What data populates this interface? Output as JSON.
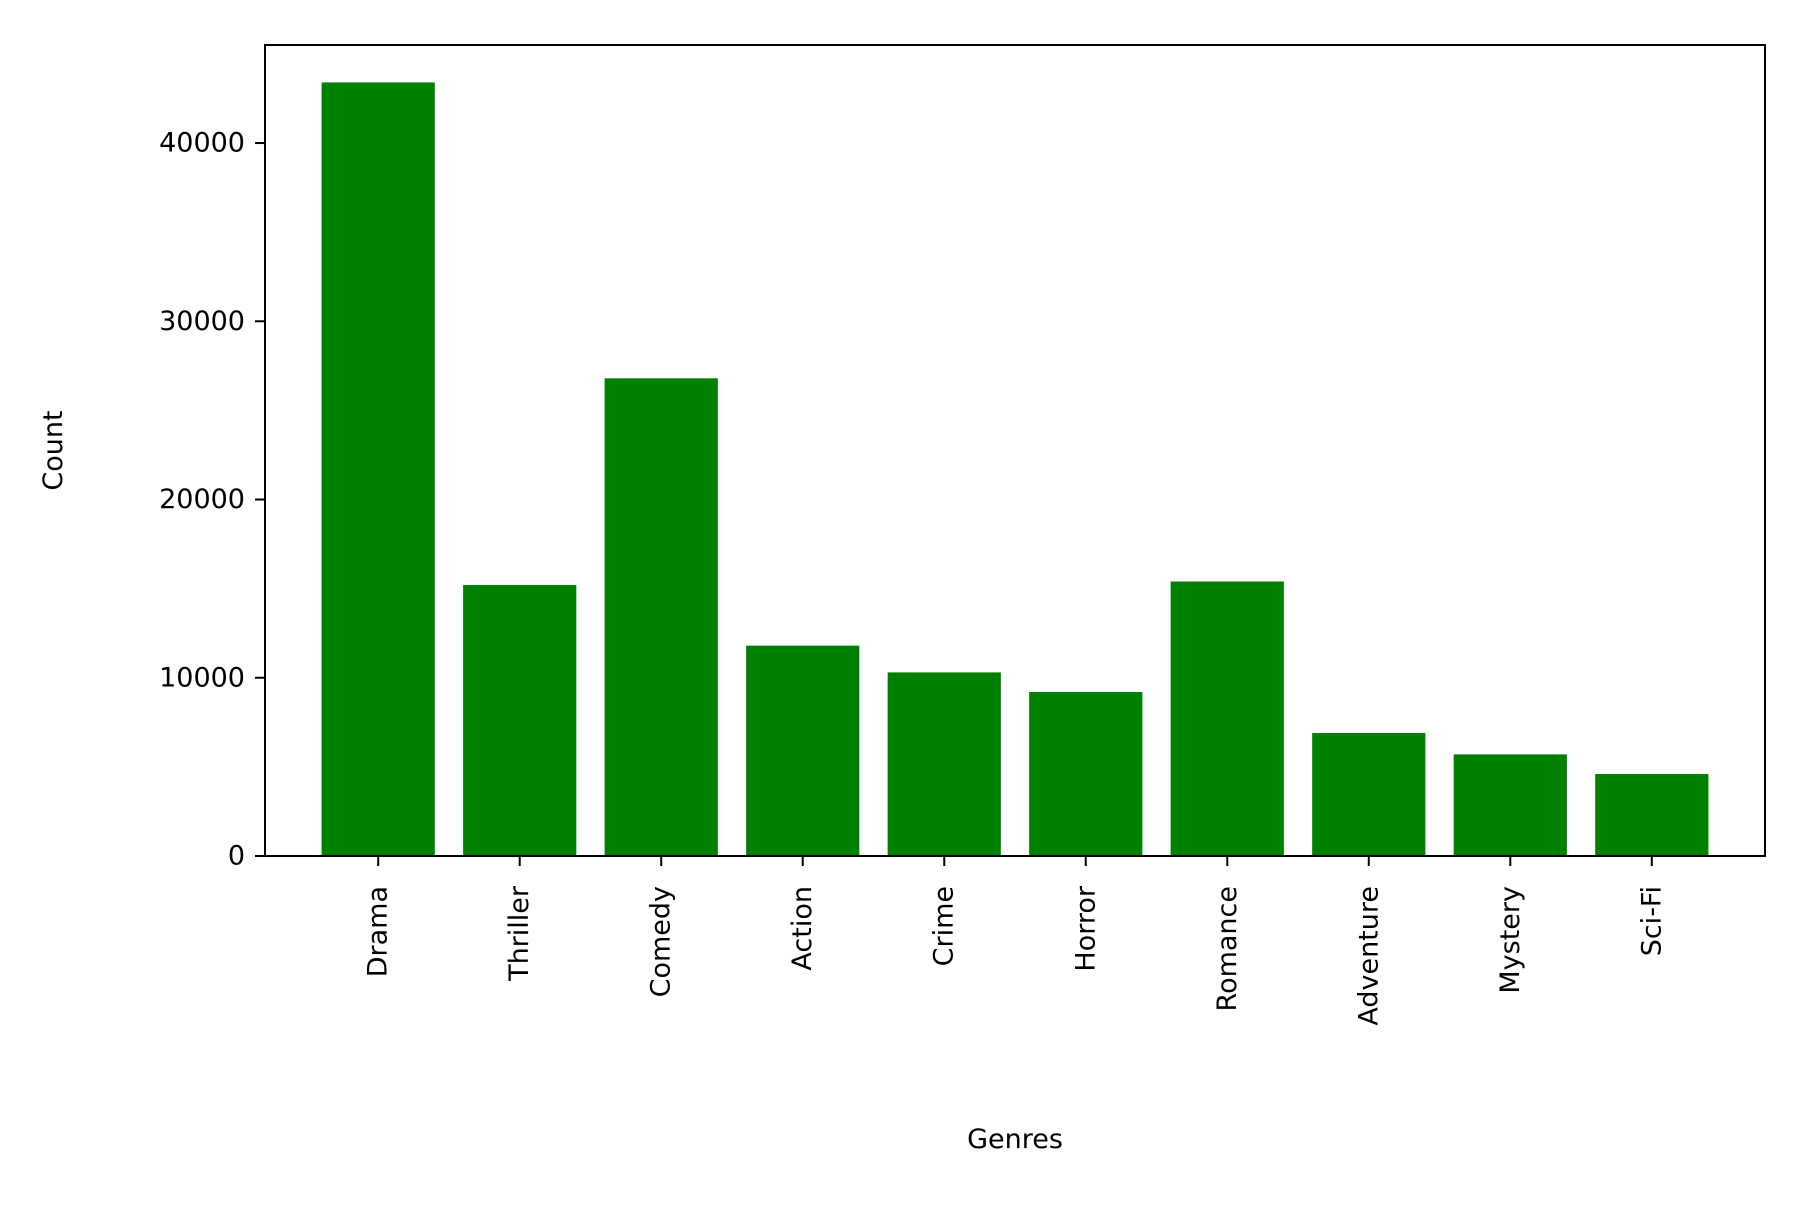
{
  "chart_data": {
    "type": "bar",
    "categories": [
      "Drama",
      "Thriller",
      "Comedy",
      "Action",
      "Crime",
      "Horror",
      "Romance",
      "Adventure",
      "Mystery",
      "Sci-Fi"
    ],
    "values": [
      43400,
      15200,
      26800,
      11800,
      10300,
      9200,
      15400,
      6900,
      5700,
      4600
    ],
    "title": "",
    "xlabel": "Genres",
    "ylabel": "Count",
    "ylim": [
      0,
      45500
    ],
    "yticks": [
      0,
      10000,
      20000,
      30000,
      40000
    ],
    "ytick_labels": [
      "0",
      "10000",
      "20000",
      "30000",
      "40000"
    ],
    "bar_color": "#008000",
    "grid": false,
    "legend": false
  }
}
